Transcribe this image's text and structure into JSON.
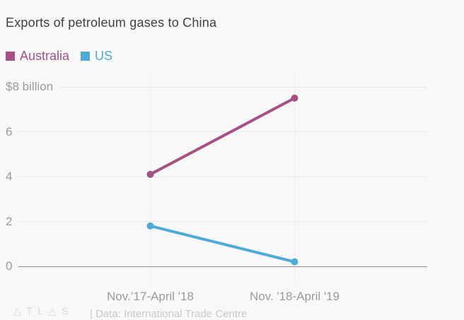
{
  "page": {
    "background": "#f8f8f8"
  },
  "header": {
    "title": "Exports of petroleum gases to China"
  },
  "legend": [
    {
      "label": "Australia",
      "color": "#a65087"
    },
    {
      "label": "US",
      "color": "#4faadc"
    }
  ],
  "chart_data": {
    "type": "line",
    "title": "Exports of petroleum gases to China",
    "categories": [
      "Nov.’17-April '18",
      "Nov. '18-April '19"
    ],
    "series": [
      {
        "name": "Australia",
        "color": "#a65087",
        "values": [
          4.1,
          7.5
        ]
      },
      {
        "name": "US",
        "color": "#4faadc",
        "values": [
          1.8,
          0.2
        ]
      }
    ],
    "ylim": [
      0,
      8
    ],
    "yticks": [
      {
        "value": 8,
        "label": "$8 billion"
      },
      {
        "value": 6,
        "label": "6"
      },
      {
        "value": 4,
        "label": "4"
      },
      {
        "value": 2,
        "label": "2"
      },
      {
        "value": 0,
        "label": "0"
      }
    ],
    "grid": true,
    "legend_position": "top-left",
    "colors": {
      "gridline": "#e9e9e9",
      "zero_axis": "#8f8f8f",
      "tick_label": "#9a9a9a",
      "title_text": "#414141"
    }
  },
  "footer": {
    "logo_letters": [
      "△",
      "T",
      "L",
      "△",
      "S"
    ],
    "source": "| Data: International Trade Centre"
  }
}
